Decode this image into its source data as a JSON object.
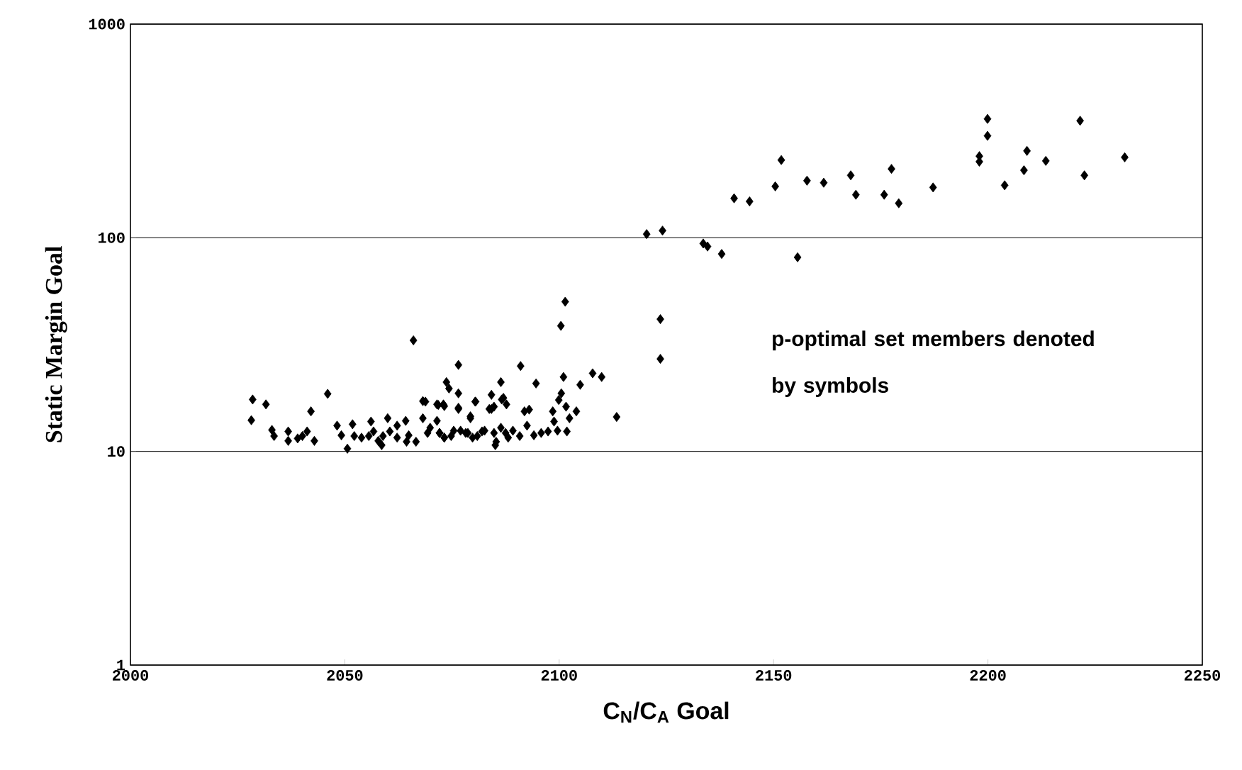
{
  "chart_data": {
    "type": "scatter",
    "xlabel": "C$_{N}$/C$_{A}$ Goal",
    "ylabel": "Static Margin Goal",
    "annotations": [
      "p-optimal set members denoted by symbols"
    ],
    "xlim": [
      2000,
      2250
    ],
    "xticks": [
      2000,
      2050,
      2100,
      2150,
      2200,
      2250
    ],
    "ylim": [
      1,
      1000
    ],
    "yticks": [
      1,
      10,
      100,
      1000
    ],
    "log": "y",
    "grid": "y",
    "marker": "diamond",
    "legend": false,
    "series": [
      {
        "color": "#000000",
        "x": [
          2120.4,
          2124.1,
          2133.6,
          2134.6,
          2137.9,
          2140.8,
          2144.4,
          2150.4,
          2151.8,
          2155.6,
          2157.8,
          2161.7,
          2168.0,
          2169.2,
          2175.8,
          2177.5,
          2179.2,
          2187.2,
          2198.0,
          2198.0,
          2199.9,
          2199.9,
          2203.9,
          2208.4,
          2209.1,
          2213.5,
          2221.5,
          2222.5,
          2231.9,
          2123.6,
          2123.6,
          2101.4,
          2100.4,
          2091.0,
          2107.8,
          2109.9,
          2101.0,
          2104.9,
          2094.6,
          2074.3,
          2100.5,
          2080.5,
          2113.4,
          2086.6,
          2087.7,
          2093.0,
          2091.9,
          2098.5,
          2101.6,
          2099.9,
          2104.0,
          2102.4,
          2098.8,
          2084.2,
          2076.5,
          2073.2,
          2071.8,
          2068.8,
          2079.3,
          2085.1,
          2028.5,
          2028.2,
          2031.6,
          2033.0,
          2033.5,
          2036.8,
          2036.8,
          2039.0,
          2040.1,
          2041.2,
          2042.1,
          2042.9,
          2046.0,
          2048.2,
          2049.2,
          2050.6,
          2051.8,
          2052.2,
          2053.9,
          2056.1,
          2056.7,
          2057.8,
          2058.6,
          2060.0,
          2060.5,
          2062.2,
          2064.2,
          2064.9,
          2066.0,
          2066.6,
          2068.2,
          2068.2,
          2069.3,
          2071.5,
          2071.5,
          2073.0,
          2073.7,
          2076.5,
          2076.5,
          2076.5,
          2078.2,
          2079.3,
          2080.4,
          2082.0,
          2083.7,
          2084.2,
          2084.8,
          2085.3,
          2086.4,
          2087.0,
          2087.5,
          2072.1,
          2073.2,
          2075.4,
          2079.8,
          2062.2,
          2064.4,
          2055.6,
          2058.9,
          2069.9,
          2072.1,
          2073.2,
          2074.8,
          2077.0,
          2078.7,
          2080.9,
          2082.6,
          2084.8,
          2086.4,
          2088.1,
          2089.2,
          2090.8,
          2092.5,
          2094.1,
          2095.8,
          2097.4,
          2099.6,
          2101.8
        ],
        "values": [
          104,
          108,
          94,
          91,
          84,
          153,
          148,
          174,
          231,
          81,
          185,
          181,
          196,
          159,
          159,
          210,
          145,
          172,
          241,
          227,
          360,
          300,
          176,
          207,
          255,
          229,
          353,
          196,
          238,
          41.6,
          27.1,
          50.2,
          38.7,
          25.1,
          23.2,
          22.3,
          22.3,
          20.5,
          20.8,
          19.7,
          18.7,
          17.1,
          14.5,
          17.5,
          16.6,
          15.7,
          15.4,
          15.4,
          16.2,
          17.4,
          15.4,
          14.3,
          13.8,
          15.8,
          16.0,
          16.3,
          16.5,
          17.1,
          14.6,
          10.7,
          17.5,
          14.0,
          16.6,
          12.6,
          11.8,
          12.4,
          11.2,
          11.5,
          11.8,
          12.4,
          15.4,
          11.2,
          18.6,
          13.2,
          11.9,
          10.3,
          13.4,
          11.8,
          11.6,
          13.8,
          12.4,
          11.2,
          10.7,
          14.3,
          12.4,
          13.2,
          13.9,
          11.9,
          33.1,
          11.1,
          17.2,
          14.3,
          12.2,
          16.6,
          13.9,
          16.6,
          21.1,
          25.4,
          18.7,
          15.8,
          12.2,
          14.3,
          17.1,
          12.4,
          15.8,
          18.4,
          16.2,
          11.1,
          21.1,
          17.8,
          12.2,
          12.2,
          11.6,
          12.5,
          11.6,
          11.6,
          11.1,
          11.8,
          11.8,
          12.9,
          12.2,
          11.6,
          11.8,
          12.5,
          12.2,
          11.8,
          12.5,
          12.2,
          12.9,
          11.6,
          12.5,
          11.8,
          13.2,
          11.9,
          12.2,
          12.4,
          12.5,
          12.4
        ]
      }
    ]
  }
}
